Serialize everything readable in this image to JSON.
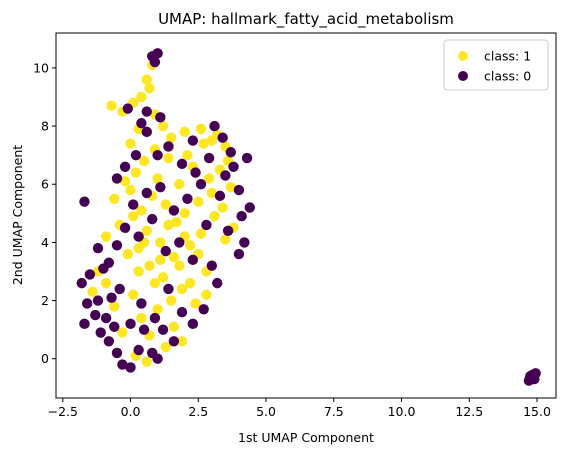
{
  "chart_data": {
    "type": "scatter",
    "title": "UMAP: hallmark_fatty_acid_metabolism",
    "xlabel": "1st UMAP Component",
    "ylabel": "2nd UMAP Component",
    "xlim": [
      -2.75,
      15.7
    ],
    "ylim": [
      -1.35,
      11.2
    ],
    "xticks": [
      -2.5,
      0.0,
      2.5,
      5.0,
      7.5,
      10.0,
      12.5,
      15.0
    ],
    "xtick_labels": [
      "−2.5",
      "0.0",
      "2.5",
      "5.0",
      "7.5",
      "10.0",
      "12.5",
      "15.0"
    ],
    "yticks": [
      0,
      2,
      4,
      6,
      8,
      10
    ],
    "ytick_labels": [
      "0",
      "2",
      "4",
      "6",
      "8",
      "10"
    ],
    "grid": false,
    "legend_position": "top-right",
    "series": [
      {
        "name": "class: 1",
        "color": "#fde725",
        "points": [
          [
            -1.2,
            3.0
          ],
          [
            -0.9,
            4.2
          ],
          [
            -0.6,
            5.5
          ],
          [
            -0.4,
            4.6
          ],
          [
            -0.2,
            6.1
          ],
          [
            0.0,
            5.8
          ],
          [
            0.1,
            4.9
          ],
          [
            0.2,
            6.4
          ],
          [
            0.3,
            3.8
          ],
          [
            0.4,
            5.1
          ],
          [
            0.5,
            6.8
          ],
          [
            0.6,
            4.4
          ],
          [
            0.7,
            3.2
          ],
          [
            0.8,
            5.6
          ],
          [
            0.9,
            7.2
          ],
          [
            1.0,
            6.2
          ],
          [
            1.1,
            4.0
          ],
          [
            1.2,
            2.8
          ],
          [
            1.3,
            5.3
          ],
          [
            1.4,
            6.9
          ],
          [
            1.5,
            7.6
          ],
          [
            1.6,
            3.5
          ],
          [
            1.7,
            4.7
          ],
          [
            1.8,
            6.0
          ],
          [
            1.9,
            2.4
          ],
          [
            2.0,
            5.0
          ],
          [
            2.1,
            7.0
          ],
          [
            2.2,
            3.9
          ],
          [
            2.3,
            6.6
          ],
          [
            2.4,
            1.9
          ],
          [
            2.5,
            5.4
          ],
          [
            2.6,
            4.3
          ],
          [
            2.7,
            7.4
          ],
          [
            2.8,
            3.0
          ],
          [
            2.9,
            6.2
          ],
          [
            3.0,
            5.7
          ],
          [
            3.1,
            4.9
          ],
          [
            3.2,
            7.7
          ],
          [
            3.3,
            6.5
          ],
          [
            3.4,
            5.2
          ],
          [
            3.5,
            4.1
          ],
          [
            3.6,
            6.8
          ],
          [
            3.7,
            5.9
          ],
          [
            3.8,
            4.5
          ],
          [
            0.1,
            2.2
          ],
          [
            0.4,
            1.4
          ],
          [
            0.7,
            0.8
          ],
          [
            1.0,
            1.7
          ],
          [
            1.3,
            0.4
          ],
          [
            1.6,
            1.1
          ],
          [
            1.9,
            0.6
          ],
          [
            0.2,
            0.1
          ],
          [
            0.6,
            -0.1
          ],
          [
            -0.3,
            0.9
          ],
          [
            -0.6,
            1.8
          ],
          [
            -0.9,
            2.6
          ],
          [
            -1.4,
            2.3
          ],
          [
            -0.7,
            8.7
          ],
          [
            -0.3,
            8.5
          ],
          [
            0.1,
            8.8
          ],
          [
            0.4,
            9.0
          ],
          [
            0.6,
            9.6
          ],
          [
            0.8,
            10.1
          ],
          [
            0.7,
            9.3
          ],
          [
            0.3,
            7.9
          ],
          [
            0.0,
            7.4
          ],
          [
            0.9,
            8.4
          ],
          [
            1.2,
            8.0
          ],
          [
            2.0,
            7.8
          ],
          [
            2.6,
            7.9
          ],
          [
            3.0,
            7.5
          ],
          [
            3.5,
            7.3
          ],
          [
            1.5,
            2.0
          ],
          [
            1.8,
            3.2
          ],
          [
            2.2,
            2.6
          ],
          [
            2.5,
            3.6
          ],
          [
            2.8,
            2.2
          ],
          [
            1.1,
            3.4
          ],
          [
            0.9,
            2.6
          ],
          [
            0.3,
            3.0
          ],
          [
            -0.1,
            3.6
          ],
          [
            0.5,
            4.0
          ],
          [
            1.4,
            4.6
          ],
          [
            2.0,
            4.2
          ]
        ]
      },
      {
        "name": "class: 0",
        "color": "#440154",
        "points": [
          [
            -1.8,
            2.6
          ],
          [
            -1.6,
            1.9
          ],
          [
            -1.7,
            1.2
          ],
          [
            -1.5,
            2.9
          ],
          [
            -1.3,
            1.5
          ],
          [
            -1.1,
            0.9
          ],
          [
            -1.2,
            2.0
          ],
          [
            -0.9,
            1.4
          ],
          [
            -0.8,
            0.6
          ],
          [
            -0.6,
            1.1
          ],
          [
            -0.5,
            0.2
          ],
          [
            -0.3,
            -0.2
          ],
          [
            0.0,
            -0.3
          ],
          [
            0.3,
            0.3
          ],
          [
            0.5,
            1.0
          ],
          [
            0.8,
            0.2
          ],
          [
            1.0,
            0.0
          ],
          [
            1.2,
            1.0
          ],
          [
            -1.7,
            5.4
          ],
          [
            -1.2,
            3.8
          ],
          [
            -0.8,
            3.3
          ],
          [
            -0.5,
            3.9
          ],
          [
            -0.2,
            4.5
          ],
          [
            0.1,
            5.3
          ],
          [
            0.3,
            4.2
          ],
          [
            0.6,
            5.7
          ],
          [
            0.8,
            4.8
          ],
          [
            1.1,
            5.9
          ],
          [
            1.3,
            3.7
          ],
          [
            1.6,
            5.1
          ],
          [
            1.8,
            4.0
          ],
          [
            2.1,
            5.5
          ],
          [
            2.3,
            3.4
          ],
          [
            2.6,
            6.0
          ],
          [
            2.8,
            4.6
          ],
          [
            3.0,
            3.2
          ],
          [
            3.3,
            5.6
          ],
          [
            3.5,
            6.3
          ],
          [
            3.8,
            6.6
          ],
          [
            4.0,
            5.8
          ],
          [
            4.1,
            4.9
          ],
          [
            4.2,
            4.0
          ],
          [
            4.3,
            6.9
          ],
          [
            4.4,
            5.2
          ],
          [
            4.0,
            3.6
          ],
          [
            3.7,
            7.1
          ],
          [
            3.4,
            7.6
          ],
          [
            2.9,
            6.9
          ],
          [
            2.4,
            6.4
          ],
          [
            1.9,
            6.7
          ],
          [
            1.4,
            7.3
          ],
          [
            1.0,
            7.0
          ],
          [
            0.6,
            7.8
          ],
          [
            0.2,
            7.0
          ],
          [
            -0.2,
            6.6
          ],
          [
            -0.5,
            6.2
          ],
          [
            0.8,
            10.4
          ],
          [
            1.0,
            10.5
          ],
          [
            0.9,
            10.2
          ],
          [
            0.6,
            8.5
          ],
          [
            -0.1,
            8.6
          ],
          [
            1.1,
            8.3
          ],
          [
            0.4,
            8.1
          ],
          [
            2.3,
            7.5
          ],
          [
            3.1,
            8.0
          ],
          [
            3.6,
            4.4
          ],
          [
            3.2,
            2.6
          ],
          [
            2.7,
            1.7
          ],
          [
            2.3,
            1.2
          ],
          [
            1.9,
            1.6
          ],
          [
            1.6,
            0.6
          ],
          [
            1.4,
            2.4
          ],
          [
            0.9,
            1.4
          ],
          [
            0.4,
            1.9
          ],
          [
            0.0,
            1.2
          ],
          [
            -0.4,
            2.4
          ],
          [
            -0.7,
            2.1
          ],
          [
            -1.0,
            3.1
          ],
          [
            14.7,
            -0.75
          ],
          [
            14.8,
            -0.65
          ],
          [
            14.85,
            -0.55
          ],
          [
            14.9,
            -0.7
          ],
          [
            14.75,
            -0.6
          ],
          [
            14.95,
            -0.5
          ]
        ]
      }
    ]
  }
}
